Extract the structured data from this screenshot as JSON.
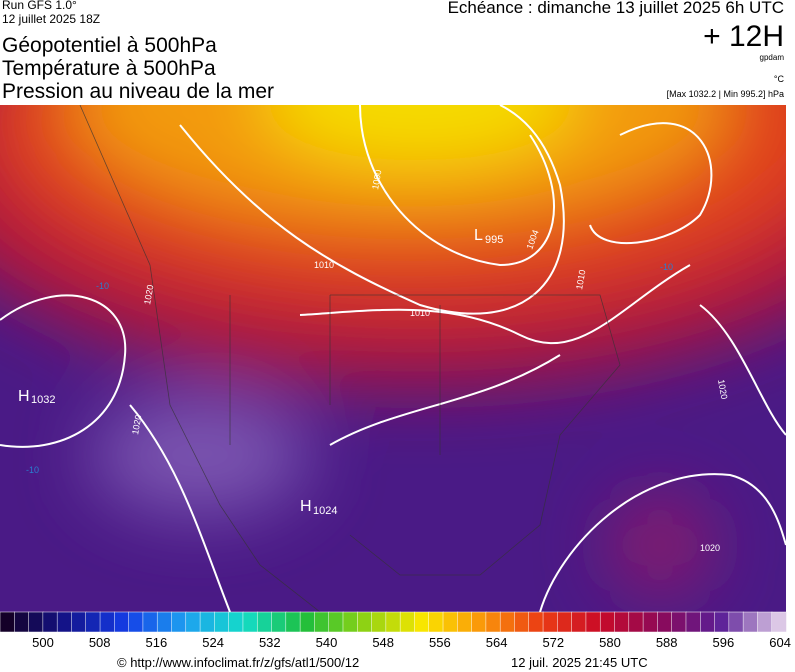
{
  "header": {
    "run": "Run GFS 1.0°",
    "run_date": "12 juillet 2025 18Z",
    "titles": [
      "Géopotentiel à 500hPa",
      "Température à 500hPa",
      "Pression au niveau de la mer"
    ],
    "forecast": "Echéance : dimanche 13 juillet 2025 6h UTC",
    "lead": "+ 12H",
    "unit_geo": "gpdam",
    "unit_temp": "°C",
    "pressure_range": "[Max 1032.2 | Min 995.2] hPa"
  },
  "map": {
    "centers": [
      {
        "letter": "H",
        "value": "1032"
      },
      {
        "letter": "L",
        "value": "995"
      },
      {
        "letter": "H",
        "value": "1024"
      }
    ],
    "isobar_labels": [
      "1000",
      "1004",
      "1010",
      "1010",
      "1020",
      "1020",
      "1020",
      "1020",
      "1010",
      "-10",
      "-10",
      "-10"
    ]
  },
  "colorbar": {
    "labels": [
      "500",
      "508",
      "516",
      "524",
      "532",
      "540",
      "548",
      "556",
      "564",
      "572",
      "580",
      "588",
      "596",
      "604"
    ]
  },
  "footer": {
    "source": "© http://www.infoclimat.fr/z/gfs/atl1/500/12",
    "timestamp": "12 juil. 2025 21:45 UTC"
  }
}
